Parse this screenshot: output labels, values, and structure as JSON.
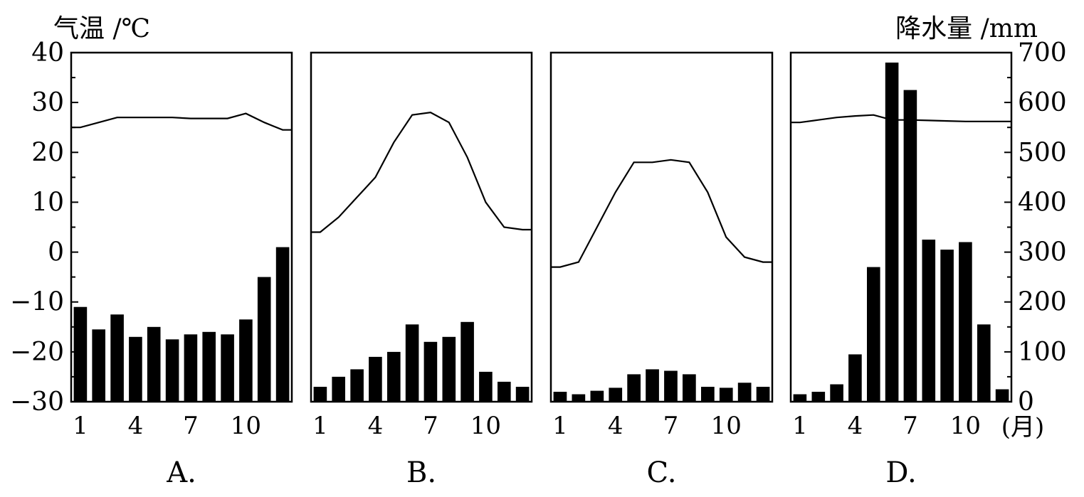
{
  "chart_data": {
    "type": "climate",
    "left_axis": {
      "label": "气温 /℃",
      "ticks": [
        40,
        30,
        20,
        10,
        0,
        -10,
        -20,
        -30
      ],
      "range": [
        -30,
        40
      ]
    },
    "right_axis": {
      "label": "降水量 /mm",
      "ticks": [
        700,
        600,
        500,
        400,
        300,
        200,
        100,
        0
      ],
      "range": [
        0,
        700
      ]
    },
    "x_labels": [
      "1",
      "4",
      "7",
      "10"
    ],
    "x_label_months": [
      1,
      4,
      7,
      10
    ],
    "month_unit": "(月)",
    "panels": [
      {
        "label": "A.",
        "temperature": [
          25,
          26,
          27,
          27,
          27,
          27,
          26.8,
          26.8,
          26.8,
          27.8,
          26,
          24.5
        ],
        "precipitation": [
          190,
          145,
          175,
          130,
          150,
          125,
          135,
          140,
          135,
          165,
          250,
          310
        ]
      },
      {
        "label": "B.",
        "temperature": [
          4,
          7,
          11,
          15,
          22,
          27.5,
          28,
          26,
          19,
          10,
          5,
          4.5
        ],
        "precipitation": [
          30,
          50,
          65,
          90,
          100,
          155,
          120,
          130,
          160,
          60,
          40,
          30
        ]
      },
      {
        "label": "C.",
        "temperature": [
          -3,
          -2,
          5,
          12,
          18,
          18,
          18.5,
          18,
          12,
          3,
          -1,
          -2
        ],
        "precipitation": [
          20,
          15,
          22,
          28,
          55,
          65,
          62,
          55,
          30,
          28,
          38,
          30
        ]
      },
      {
        "label": "D.",
        "temperature": [
          26,
          26.5,
          27,
          27.3,
          27.5,
          26.5,
          26.5,
          26.4,
          26.3,
          26.2,
          26.2,
          26.2
        ],
        "precipitation": [
          15,
          20,
          35,
          95,
          270,
          680,
          625,
          325,
          305,
          320,
          155,
          25
        ]
      }
    ]
  }
}
